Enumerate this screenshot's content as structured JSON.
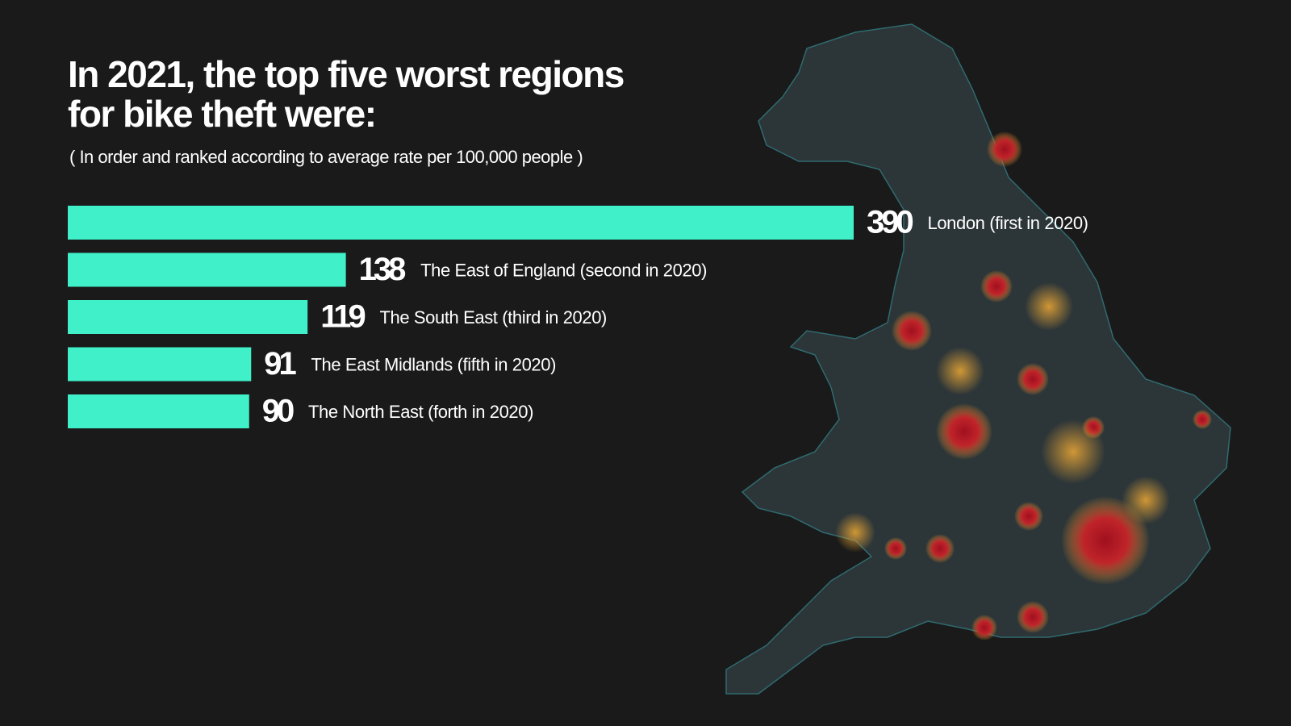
{
  "chart_data": {
    "type": "bar",
    "orientation": "horizontal",
    "title": "In 2021, the top five worst regions for bike theft were:",
    "subtitle": "( In order and ranked according to average rate per 100,000 people )",
    "categories": [
      "London (first in 2020)",
      "The East of England (second in 2020)",
      "The South East (third in 2020)",
      "The East Midlands (fifth in 2020)",
      "The North East (forth in 2020)"
    ],
    "values": [
      390,
      138,
      119,
      91,
      90
    ],
    "color": "#3ff0c8"
  }
}
